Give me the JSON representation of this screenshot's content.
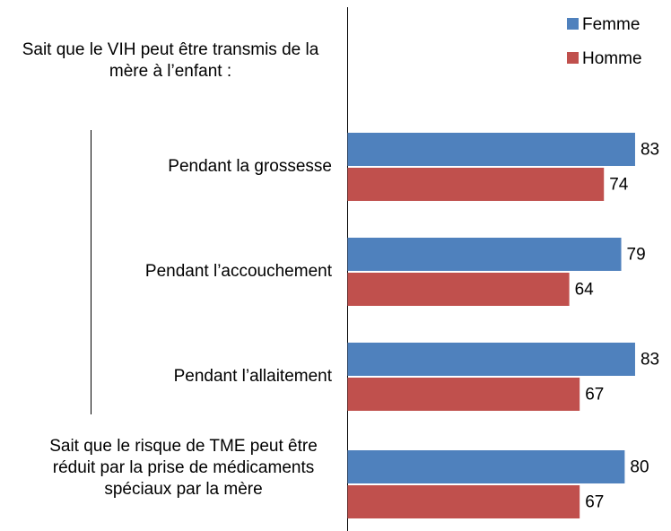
{
  "chart_data": {
    "type": "bar",
    "orientation": "horizontal",
    "categories": [
      "Sait que le VIH peut être transmis de la mère à l’enfant :",
      "Pendant la grossesse",
      "Pendant l’accouchement",
      "Pendant l’allaitement",
      "Sait que le risque de TME peut être réduit par la prise de médicaments spéciaux par la mère"
    ],
    "series": [
      {
        "name": "Femme",
        "color": "#4f81bd",
        "values": [
          null,
          83,
          79,
          83,
          80
        ]
      },
      {
        "name": "Homme",
        "color": "#c0504d",
        "values": [
          null,
          74,
          64,
          67,
          67
        ]
      }
    ],
    "xlim": [
      0,
      90
    ],
    "legend": "top-right"
  }
}
